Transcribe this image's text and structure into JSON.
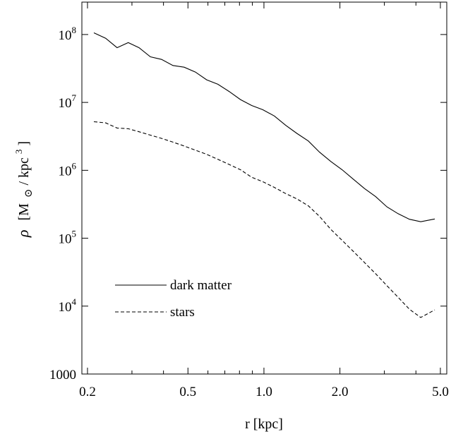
{
  "chart_data": {
    "type": "line",
    "x_scale": "log",
    "y_scale": "log",
    "xlabel": "r  [kpc]",
    "ylabel_symbol": "ρ",
    "ylabel_open": "[M",
    "ylabel_sun": "⊙",
    "ylabel_mid": " / kpc",
    "ylabel_sup": "3",
    "ylabel_close": "]",
    "xlim": [
      0.19,
      5.3
    ],
    "ylim": [
      1000,
      300000000
    ],
    "x_ticks": [
      {
        "value": 0.2,
        "label": "0.2"
      },
      {
        "value": 0.5,
        "label": "0.5"
      },
      {
        "value": 1.0,
        "label": "1.0"
      },
      {
        "value": 2.0,
        "label": "2.0"
      },
      {
        "value": 5.0,
        "label": "5.0"
      }
    ],
    "x_minor_ticks": [
      0.3,
      0.4,
      0.6,
      0.7,
      0.8,
      0.9,
      3.0,
      4.0
    ],
    "y_ticks": [
      {
        "value": 1000,
        "label": "1000",
        "exp": ""
      },
      {
        "value": 10000,
        "label": "10",
        "exp": "4"
      },
      {
        "value": 100000,
        "label": "10",
        "exp": "5"
      },
      {
        "value": 1000000,
        "label": "10",
        "exp": "6"
      },
      {
        "value": 10000000,
        "label": "10",
        "exp": "7"
      },
      {
        "value": 100000000,
        "label": "10",
        "exp": "8"
      }
    ],
    "legend": "bottom-left",
    "grid": false,
    "series": [
      {
        "name": "dark matter",
        "dash": "solid",
        "x": [
          0.212,
          0.236,
          0.262,
          0.29,
          0.32,
          0.355,
          0.393,
          0.436,
          0.483,
          0.535,
          0.593,
          0.657,
          0.728,
          0.807,
          0.894,
          0.99,
          1.1,
          1.22,
          1.35,
          1.5,
          1.66,
          1.84,
          2.04,
          2.26,
          2.5,
          2.77,
          3.07,
          3.4,
          3.77,
          4.18,
          4.75
        ],
        "y": [
          106000000,
          88000000,
          64000000,
          76000000,
          64000000,
          47000000,
          43000000,
          35000000,
          33000000,
          28000000,
          21500000,
          18500000,
          14500000,
          11000000,
          9000000,
          7800000,
          6300000,
          4600000,
          3500000,
          2700000,
          1850000,
          1350000,
          1020000,
          740000,
          540000,
          410000,
          290000,
          230000,
          190000,
          175000,
          192000
        ]
      },
      {
        "name": "stars",
        "dash": "dashed",
        "x": [
          0.212,
          0.236,
          0.262,
          0.29,
          0.32,
          0.355,
          0.393,
          0.436,
          0.483,
          0.535,
          0.593,
          0.657,
          0.728,
          0.807,
          0.894,
          0.99,
          1.1,
          1.22,
          1.35,
          1.5,
          1.66,
          1.84,
          2.04,
          2.26,
          2.5,
          2.77,
          3.07,
          3.4,
          3.77,
          4.18,
          4.75
        ],
        "y": [
          5200000,
          5000000,
          4200000,
          4100000,
          3700000,
          3300000,
          2950000,
          2600000,
          2280000,
          1980000,
          1720000,
          1450000,
          1220000,
          1020000,
          790000,
          680000,
          560000,
          455000,
          380000,
          300000,
          210000,
          135000,
          93000,
          64000,
          44000,
          30000,
          20000,
          13500,
          9000,
          6800,
          8800
        ]
      }
    ]
  }
}
